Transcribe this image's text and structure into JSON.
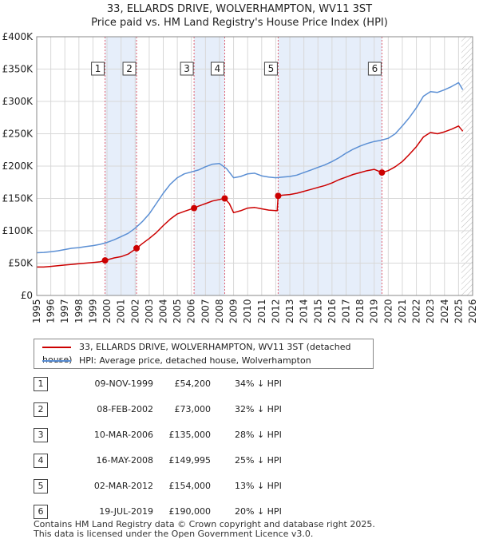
{
  "header": {
    "title_line1": "33, ELLARDS DRIVE, WOLVERHAMPTON, WV11 3ST",
    "title_line2": "Price paid vs. HM Land Registry's House Price Index (HPI)"
  },
  "chart_data": {
    "type": "line",
    "title": "33, ELLARDS DRIVE, WOLVERHAMPTON, WV11 3ST — Price paid vs. HM Land Registry's House Price Index (HPI)",
    "xlabel": "",
    "ylabel": "",
    "xlim": [
      1995,
      2026
    ],
    "ylim": [
      0,
      400000
    ],
    "x_ticks": [
      "1995",
      "1996",
      "1997",
      "1998",
      "1999",
      "2000",
      "2001",
      "2002",
      "2003",
      "2004",
      "2005",
      "2006",
      "2007",
      "2008",
      "2009",
      "2010",
      "2011",
      "2012",
      "2013",
      "2014",
      "2015",
      "2016",
      "2017",
      "2018",
      "2019",
      "2020",
      "2021",
      "2022",
      "2023",
      "2024",
      "2025",
      "2026"
    ],
    "y_ticks": [
      {
        "value": 0,
        "label": "£0"
      },
      {
        "value": 50000,
        "label": "£50K"
      },
      {
        "value": 100000,
        "label": "£100K"
      },
      {
        "value": 150000,
        "label": "£150K"
      },
      {
        "value": 200000,
        "label": "£200K"
      },
      {
        "value": 250000,
        "label": "£250K"
      },
      {
        "value": 300000,
        "label": "£300K"
      },
      {
        "value": 350000,
        "label": "£350K"
      },
      {
        "value": 400000,
        "label": "£400K"
      }
    ],
    "grid": true,
    "projection_from": 2025.2,
    "shaded_ranges": [
      [
        1999.86,
        2002.1
      ],
      [
        2006.19,
        2008.37
      ],
      [
        2012.17,
        2019.55
      ]
    ],
    "series": [
      {
        "name": "HPI: Average price, detached house, Wolverhampton",
        "color": "#5b8fd4",
        "points": [
          [
            1995.0,
            66000
          ],
          [
            1995.5,
            66500
          ],
          [
            1996.0,
            67500
          ],
          [
            1996.5,
            69000
          ],
          [
            1997.0,
            71000
          ],
          [
            1997.5,
            73000
          ],
          [
            1998.0,
            74000
          ],
          [
            1998.5,
            75500
          ],
          [
            1999.0,
            77000
          ],
          [
            1999.5,
            79000
          ],
          [
            2000.0,
            82000
          ],
          [
            2000.5,
            86000
          ],
          [
            2001.0,
            91000
          ],
          [
            2001.5,
            96000
          ],
          [
            2002.0,
            104000
          ],
          [
            2002.5,
            114000
          ],
          [
            2003.0,
            126000
          ],
          [
            2003.5,
            142000
          ],
          [
            2004.0,
            158000
          ],
          [
            2004.5,
            172000
          ],
          [
            2005.0,
            182000
          ],
          [
            2005.5,
            188000
          ],
          [
            2006.0,
            191000
          ],
          [
            2006.5,
            194000
          ],
          [
            2007.0,
            199000
          ],
          [
            2007.5,
            203000
          ],
          [
            2008.0,
            204000
          ],
          [
            2008.5,
            196000
          ],
          [
            2009.0,
            182000
          ],
          [
            2009.5,
            184000
          ],
          [
            2010.0,
            188000
          ],
          [
            2010.5,
            189000
          ],
          [
            2011.0,
            185000
          ],
          [
            2011.5,
            183000
          ],
          [
            2012.0,
            182000
          ],
          [
            2012.5,
            183000
          ],
          [
            2013.0,
            184000
          ],
          [
            2013.5,
            186000
          ],
          [
            2014.0,
            190000
          ],
          [
            2014.5,
            194000
          ],
          [
            2015.0,
            198000
          ],
          [
            2015.5,
            202000
          ],
          [
            2016.0,
            207000
          ],
          [
            2016.5,
            213000
          ],
          [
            2017.0,
            220000
          ],
          [
            2017.5,
            226000
          ],
          [
            2018.0,
            231000
          ],
          [
            2018.5,
            235000
          ],
          [
            2019.0,
            238000
          ],
          [
            2019.5,
            240000
          ],
          [
            2020.0,
            243000
          ],
          [
            2020.5,
            250000
          ],
          [
            2021.0,
            262000
          ],
          [
            2021.5,
            275000
          ],
          [
            2022.0,
            290000
          ],
          [
            2022.5,
            308000
          ],
          [
            2023.0,
            315000
          ],
          [
            2023.5,
            314000
          ],
          [
            2024.0,
            318000
          ],
          [
            2024.5,
            323000
          ],
          [
            2025.0,
            329000
          ],
          [
            2025.3,
            318000
          ]
        ]
      },
      {
        "name": "33, ELLARDS DRIVE, WOLVERHAMPTON, WV11 3ST (detached house)",
        "color": "#cc0000",
        "points": [
          [
            1995.0,
            44000
          ],
          [
            1995.5,
            44000
          ],
          [
            1996.0,
            45000
          ],
          [
            1996.5,
            46000
          ],
          [
            1997.0,
            47000
          ],
          [
            1997.5,
            48000
          ],
          [
            1998.0,
            49000
          ],
          [
            1998.5,
            50000
          ],
          [
            1999.0,
            51000
          ],
          [
            1999.5,
            52000
          ],
          [
            1999.86,
            54200
          ],
          [
            2000.5,
            58000
          ],
          [
            2001.0,
            60000
          ],
          [
            2001.5,
            64000
          ],
          [
            2002.1,
            73000
          ],
          [
            2002.5,
            80000
          ],
          [
            2003.0,
            88000
          ],
          [
            2003.5,
            97000
          ],
          [
            2004.0,
            108000
          ],
          [
            2004.5,
            118000
          ],
          [
            2005.0,
            126000
          ],
          [
            2005.5,
            130000
          ],
          [
            2006.19,
            135000
          ],
          [
            2006.5,
            138000
          ],
          [
            2007.0,
            142000
          ],
          [
            2007.5,
            146000
          ],
          [
            2008.37,
            149995
          ],
          [
            2008.7,
            142000
          ],
          [
            2009.0,
            128000
          ],
          [
            2009.5,
            131000
          ],
          [
            2010.0,
            135000
          ],
          [
            2010.5,
            136000
          ],
          [
            2011.0,
            134000
          ],
          [
            2011.5,
            132000
          ],
          [
            2012.1,
            131000
          ],
          [
            2012.17,
            154000
          ],
          [
            2012.5,
            155000
          ],
          [
            2013.0,
            156000
          ],
          [
            2013.5,
            158000
          ],
          [
            2014.0,
            161000
          ],
          [
            2014.5,
            164000
          ],
          [
            2015.0,
            167000
          ],
          [
            2015.5,
            170000
          ],
          [
            2016.0,
            174000
          ],
          [
            2016.5,
            179000
          ],
          [
            2017.0,
            183000
          ],
          [
            2017.5,
            187000
          ],
          [
            2018.0,
            190000
          ],
          [
            2018.5,
            193000
          ],
          [
            2019.0,
            195000
          ],
          [
            2019.55,
            190000
          ],
          [
            2020.0,
            193000
          ],
          [
            2020.5,
            199000
          ],
          [
            2021.0,
            207000
          ],
          [
            2021.5,
            218000
          ],
          [
            2022.0,
            230000
          ],
          [
            2022.5,
            245000
          ],
          [
            2023.0,
            252000
          ],
          [
            2023.5,
            250000
          ],
          [
            2024.0,
            253000
          ],
          [
            2024.5,
            257000
          ],
          [
            2025.0,
            262000
          ],
          [
            2025.3,
            254000
          ]
        ]
      }
    ],
    "sales": [
      {
        "num": "1",
        "x": 1999.86,
        "value": 54200,
        "date": "09-NOV-1999",
        "price": "£54,200",
        "hpi": "34% ↓ HPI"
      },
      {
        "num": "2",
        "x": 2002.1,
        "value": 73000,
        "date": "08-FEB-2002",
        "price": "£73,000",
        "hpi": "32% ↓ HPI"
      },
      {
        "num": "3",
        "x": 2006.19,
        "value": 135000,
        "date": "10-MAR-2006",
        "price": "£135,000",
        "hpi": "28% ↓ HPI"
      },
      {
        "num": "4",
        "x": 2008.37,
        "value": 149995,
        "date": "16-MAY-2008",
        "price": "£149,995",
        "hpi": "25% ↓ HPI"
      },
      {
        "num": "5",
        "x": 2012.17,
        "value": 154000,
        "date": "02-MAR-2012",
        "price": "£154,000",
        "hpi": "13% ↓ HPI"
      },
      {
        "num": "6",
        "x": 2019.55,
        "value": 190000,
        "date": "19-JUL-2019",
        "price": "£190,000",
        "hpi": "20% ↓ HPI"
      }
    ]
  },
  "legend": {
    "property_label": "33, ELLARDS DRIVE, WOLVERHAMPTON, WV11 3ST (detached house)",
    "hpi_label": "HPI: Average price, detached house, Wolverhampton",
    "property_color": "#cc0000",
    "hpi_color": "#5b8fd4"
  },
  "footer": {
    "line1": "Contains HM Land Registry data © Crown copyright and database right 2025.",
    "line2": "This data is licensed under the Open Government Licence v3.0."
  }
}
